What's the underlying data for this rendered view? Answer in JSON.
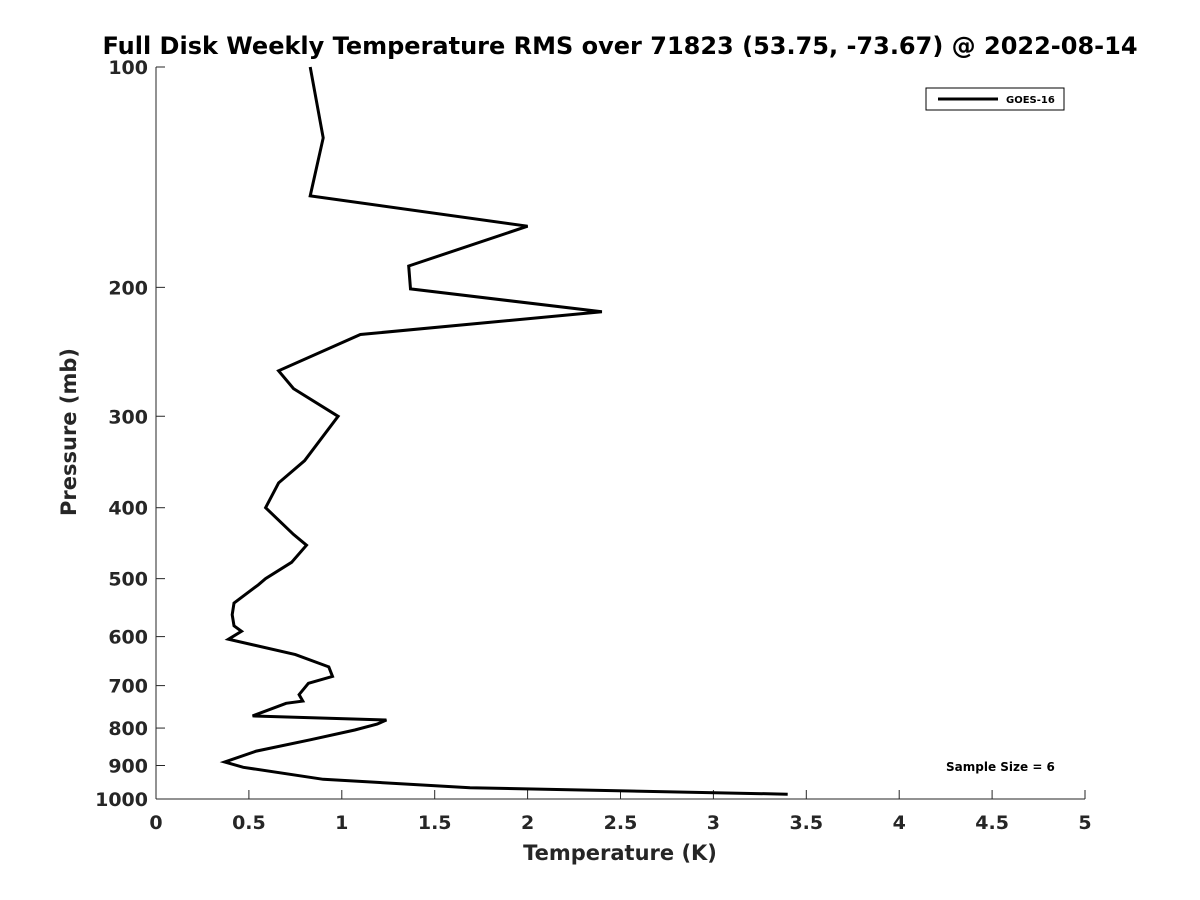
{
  "chart_data": {
    "type": "line",
    "title": "Full Disk Weekly Temperature RMS over 71823 (53.75, -73.67) @ 2022-08-14",
    "xlabel": "Temperature (K)",
    "ylabel": "Pressure (mb)",
    "xlim": [
      0,
      5
    ],
    "ylim": [
      100,
      1000
    ],
    "yscale": "log",
    "yreversed": true,
    "x_ticks": [
      "0",
      "0.5",
      "1",
      "1.5",
      "2",
      "2.5",
      "3",
      "3.5",
      "4",
      "4.5",
      "5"
    ],
    "y_ticks": [
      "100",
      "200",
      "300",
      "400",
      "500",
      "600",
      "700",
      "800",
      "900",
      "1000"
    ],
    "grid": false,
    "legend_position": "top-right",
    "series": [
      {
        "name": "GOES-16",
        "color": "#000000",
        "points": [
          [
            0.83,
            100
          ],
          [
            0.9,
            125
          ],
          [
            0.83,
            150
          ],
          [
            2.0,
            165
          ],
          [
            1.36,
            187
          ],
          [
            1.37,
            201
          ],
          [
            2.4,
            216
          ],
          [
            1.1,
            232
          ],
          [
            0.66,
            260
          ],
          [
            0.74,
            275
          ],
          [
            0.98,
            300
          ],
          [
            0.8,
            345
          ],
          [
            0.66,
            370
          ],
          [
            0.59,
            400
          ],
          [
            0.74,
            435
          ],
          [
            0.81,
            450
          ],
          [
            0.73,
            475
          ],
          [
            0.59,
            500
          ],
          [
            0.55,
            510
          ],
          [
            0.42,
            540
          ],
          [
            0.41,
            560
          ],
          [
            0.42,
            580
          ],
          [
            0.46,
            590
          ],
          [
            0.39,
            605
          ],
          [
            0.75,
            635
          ],
          [
            0.93,
            660
          ],
          [
            0.95,
            680
          ],
          [
            0.82,
            695
          ],
          [
            0.77,
            720
          ],
          [
            0.79,
            735
          ],
          [
            0.7,
            740
          ],
          [
            0.52,
            770
          ],
          [
            1.24,
            780
          ],
          [
            1.19,
            790
          ],
          [
            1.07,
            805
          ],
          [
            0.83,
            830
          ],
          [
            0.54,
            860
          ],
          [
            0.37,
            890
          ],
          [
            0.47,
            905
          ],
          [
            0.9,
            940
          ],
          [
            1.69,
            965
          ],
          [
            3.4,
            985
          ]
        ]
      }
    ],
    "annotation": "Sample Size = 6"
  }
}
